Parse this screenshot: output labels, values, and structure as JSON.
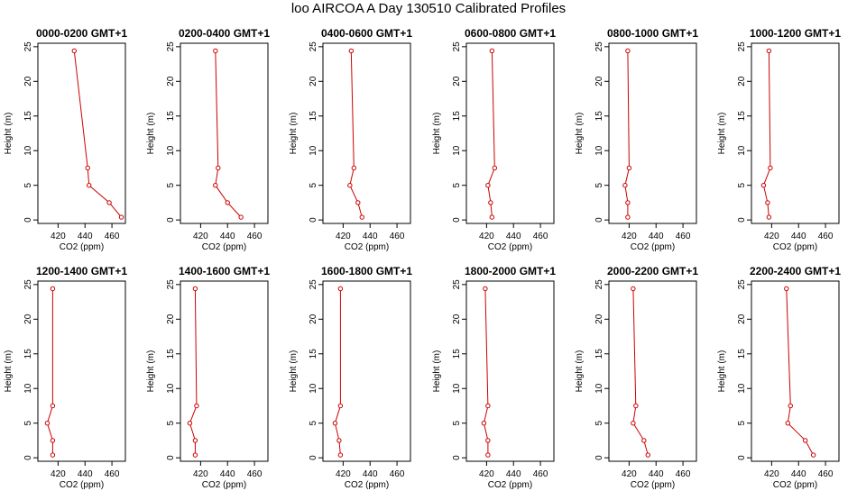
{
  "figure": {
    "title": "loo AIRCOA A  Day 130510  Calibrated Profiles",
    "line_color": "#cc0000"
  },
  "chart_data": [
    {
      "type": "line",
      "title": "0000-0200 GMT+1",
      "xlabel": "CO2 (ppm)",
      "ylabel": "Height (m)",
      "xlim": [
        405,
        470
      ],
      "ylim": [
        -0.5,
        25.5
      ],
      "xticks": [
        420,
        440,
        460
      ],
      "yticks": [
        0,
        5,
        10,
        15,
        20,
        25
      ],
      "grid": false,
      "points": [
        {
          "x": 432,
          "y": 24.4
        },
        {
          "x": 442,
          "y": 7.5
        },
        {
          "x": 443,
          "y": 5.0
        },
        {
          "x": 458,
          "y": 2.5
        },
        {
          "x": 467,
          "y": 0.4
        }
      ]
    },
    {
      "type": "line",
      "title": "0200-0400 GMT+1",
      "xlabel": "CO2 (ppm)",
      "ylabel": "Height (m)",
      "xlim": [
        405,
        470
      ],
      "ylim": [
        -0.5,
        25.5
      ],
      "xticks": [
        420,
        440,
        460
      ],
      "yticks": [
        0,
        5,
        10,
        15,
        20,
        25
      ],
      "grid": false,
      "points": [
        {
          "x": 431,
          "y": 24.4
        },
        {
          "x": 433,
          "y": 7.5
        },
        {
          "x": 431,
          "y": 5.0
        },
        {
          "x": 440,
          "y": 2.5
        },
        {
          "x": 450,
          "y": 0.4
        }
      ]
    },
    {
      "type": "line",
      "title": "0400-0600 GMT+1",
      "xlabel": "CO2 (ppm)",
      "ylabel": "Height (m)",
      "xlim": [
        405,
        470
      ],
      "ylim": [
        -0.5,
        25.5
      ],
      "xticks": [
        420,
        440,
        460
      ],
      "yticks": [
        0,
        5,
        10,
        15,
        20,
        25
      ],
      "grid": false,
      "points": [
        {
          "x": 426,
          "y": 24.4
        },
        {
          "x": 428,
          "y": 7.5
        },
        {
          "x": 425,
          "y": 5.0
        },
        {
          "x": 431,
          "y": 2.5
        },
        {
          "x": 434,
          "y": 0.4
        }
      ]
    },
    {
      "type": "line",
      "title": "0600-0800 GMT+1",
      "xlabel": "CO2 (ppm)",
      "ylabel": "Height (m)",
      "xlim": [
        405,
        470
      ],
      "ylim": [
        -0.5,
        25.5
      ],
      "xticks": [
        420,
        440,
        460
      ],
      "yticks": [
        0,
        5,
        10,
        15,
        20,
        25
      ],
      "grid": false,
      "points": [
        {
          "x": 424,
          "y": 24.4
        },
        {
          "x": 426,
          "y": 7.5
        },
        {
          "x": 421,
          "y": 5.0
        },
        {
          "x": 423,
          "y": 2.5
        },
        {
          "x": 424,
          "y": 0.4
        }
      ]
    },
    {
      "type": "line",
      "title": "0800-1000 GMT+1",
      "xlabel": "CO2 (ppm)",
      "ylabel": "Height (m)",
      "xlim": [
        405,
        470
      ],
      "ylim": [
        -0.5,
        25.5
      ],
      "xticks": [
        420,
        440,
        460
      ],
      "yticks": [
        0,
        5,
        10,
        15,
        20,
        25
      ],
      "grid": false,
      "points": [
        {
          "x": 419,
          "y": 24.4
        },
        {
          "x": 420,
          "y": 7.5
        },
        {
          "x": 417,
          "y": 5.0
        },
        {
          "x": 419,
          "y": 2.5
        },
        {
          "x": 419,
          "y": 0.4
        }
      ]
    },
    {
      "type": "line",
      "title": "1000-1200 GMT+1",
      "xlabel": "CO2 (ppm)",
      "ylabel": "Height (m)",
      "xlim": [
        405,
        470
      ],
      "ylim": [
        -0.5,
        25.5
      ],
      "xticks": [
        420,
        440,
        460
      ],
      "yticks": [
        0,
        5,
        10,
        15,
        20,
        25
      ],
      "grid": false,
      "points": [
        {
          "x": 418,
          "y": 24.4
        },
        {
          "x": 419,
          "y": 7.5
        },
        {
          "x": 414,
          "y": 5.0
        },
        {
          "x": 417,
          "y": 2.5
        },
        {
          "x": 418,
          "y": 0.4
        }
      ]
    },
    {
      "type": "line",
      "title": "1200-1400 GMT+1",
      "xlabel": "CO2 (ppm)",
      "ylabel": "Height (m)",
      "xlim": [
        405,
        470
      ],
      "ylim": [
        -0.5,
        25.5
      ],
      "xticks": [
        420,
        440,
        460
      ],
      "yticks": [
        0,
        5,
        10,
        15,
        20,
        25
      ],
      "grid": false,
      "points": [
        {
          "x": 416,
          "y": 24.4
        },
        {
          "x": 416,
          "y": 7.5
        },
        {
          "x": 412,
          "y": 5.0
        },
        {
          "x": 416,
          "y": 2.5
        },
        {
          "x": 416,
          "y": 0.4
        }
      ]
    },
    {
      "type": "line",
      "title": "1400-1600 GMT+1",
      "xlabel": "CO2 (ppm)",
      "ylabel": "Height (m)",
      "xlim": [
        405,
        470
      ],
      "ylim": [
        -0.5,
        25.5
      ],
      "xticks": [
        420,
        440,
        460
      ],
      "yticks": [
        0,
        5,
        10,
        15,
        20,
        25
      ],
      "grid": false,
      "points": [
        {
          "x": 416,
          "y": 24.4
        },
        {
          "x": 417,
          "y": 7.5
        },
        {
          "x": 412,
          "y": 5.0
        },
        {
          "x": 416,
          "y": 2.5
        },
        {
          "x": 416,
          "y": 0.4
        }
      ]
    },
    {
      "type": "line",
      "title": "1600-1800 GMT+1",
      "xlabel": "CO2 (ppm)",
      "ylabel": "Height (m)",
      "xlim": [
        405,
        470
      ],
      "ylim": [
        -0.5,
        25.5
      ],
      "xticks": [
        420,
        440,
        460
      ],
      "yticks": [
        0,
        5,
        10,
        15,
        20,
        25
      ],
      "grid": false,
      "points": [
        {
          "x": 418,
          "y": 24.4
        },
        {
          "x": 418,
          "y": 7.5
        },
        {
          "x": 414,
          "y": 5.0
        },
        {
          "x": 417,
          "y": 2.5
        },
        {
          "x": 418,
          "y": 0.4
        }
      ]
    },
    {
      "type": "line",
      "title": "1800-2000 GMT+1",
      "xlabel": "CO2 (ppm)",
      "ylabel": "Height (m)",
      "xlim": [
        405,
        470
      ],
      "ylim": [
        -0.5,
        25.5
      ],
      "xticks": [
        420,
        440,
        460
      ],
      "yticks": [
        0,
        5,
        10,
        15,
        20,
        25
      ],
      "grid": false,
      "points": [
        {
          "x": 419,
          "y": 24.4
        },
        {
          "x": 421,
          "y": 7.5
        },
        {
          "x": 418,
          "y": 5.0
        },
        {
          "x": 421,
          "y": 2.5
        },
        {
          "x": 421,
          "y": 0.4
        }
      ]
    },
    {
      "type": "line",
      "title": "2000-2200 GMT+1",
      "xlabel": "CO2 (ppm)",
      "ylabel": "Height (m)",
      "xlim": [
        405,
        470
      ],
      "ylim": [
        -0.5,
        25.5
      ],
      "xticks": [
        420,
        440,
        460
      ],
      "yticks": [
        0,
        5,
        10,
        15,
        20,
        25
      ],
      "grid": false,
      "points": [
        {
          "x": 423,
          "y": 24.4
        },
        {
          "x": 425,
          "y": 7.5
        },
        {
          "x": 423,
          "y": 5.0
        },
        {
          "x": 431,
          "y": 2.5
        },
        {
          "x": 434,
          "y": 0.4
        }
      ]
    },
    {
      "type": "line",
      "title": "2200-2400 GMT+1",
      "xlabel": "CO2 (ppm)",
      "ylabel": "Height (m)",
      "xlim": [
        405,
        470
      ],
      "ylim": [
        -0.5,
        25.5
      ],
      "xticks": [
        420,
        440,
        460
      ],
      "yticks": [
        0,
        5,
        10,
        15,
        20,
        25
      ],
      "grid": false,
      "points": [
        {
          "x": 431,
          "y": 24.4
        },
        {
          "x": 434,
          "y": 7.5
        },
        {
          "x": 432,
          "y": 5.0
        },
        {
          "x": 445,
          "y": 2.5
        },
        {
          "x": 451,
          "y": 0.4
        }
      ]
    }
  ]
}
